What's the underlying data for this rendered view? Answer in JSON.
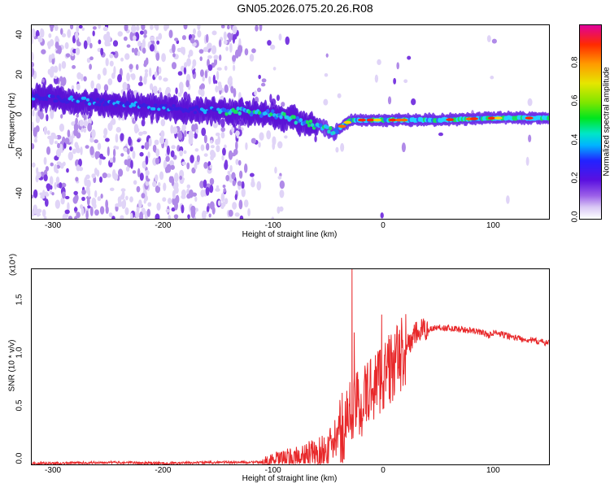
{
  "title": "GN05.2026.075.20.26.R08",
  "chart_data": [
    {
      "type": "heatmap",
      "xlabel": "Height of straight line (km)",
      "ylabel": "Frequency (Hz)",
      "xlim": [
        -320,
        150
      ],
      "ylim": [
        -50,
        48
      ],
      "x_ticks": [
        -300,
        -200,
        -100,
        0,
        100
      ],
      "y_ticks": [
        -40,
        -20,
        0,
        20,
        40
      ],
      "colorbar": {
        "label": "Normalized spectral amplitude",
        "range": [
          0,
          1
        ],
        "ticks": [
          "0.0",
          "0.2",
          "0.4",
          "0.6",
          "0.8"
        ]
      },
      "ridge": {
        "height_km": [
          -320,
          -280,
          -240,
          -200,
          -160,
          -120,
          -100,
          -80,
          -60,
          -45,
          -30,
          0,
          50,
          100,
          150
        ],
        "frequency_hz": [
          12,
          10,
          8,
          6,
          5,
          4,
          3,
          0,
          -3,
          -6,
          0,
          0,
          0,
          1,
          1
        ]
      }
    },
    {
      "type": "line",
      "xlabel": "Height of straight line (km)",
      "ylabel": "SNR (10 * v/v)",
      "y_multiplier": "(x10⁴)",
      "xlim": [
        -320,
        150
      ],
      "ylim": [
        0,
        1.85
      ],
      "x_ticks": [
        -300,
        -200,
        -100,
        0,
        100
      ],
      "y_ticks": [
        "0.0",
        "0.5",
        "1.0",
        "1.5"
      ],
      "series_color": "#e8282a",
      "series": [
        {
          "x": [
            -320,
            -300,
            -250,
            -200,
            -150,
            -110,
            -100,
            -80,
            -60,
            -50,
            -40,
            -30,
            -25,
            -20,
            -15,
            -10,
            -5,
            0,
            10,
            20,
            30,
            40,
            50,
            70,
            90,
            95,
            100,
            120,
            150
          ],
          "y": [
            0.01,
            0.01,
            0.02,
            0.01,
            0.02,
            0.02,
            0.04,
            0.06,
            0.1,
            0.15,
            0.3,
            0.5,
            0.55,
            0.6,
            0.65,
            0.75,
            0.8,
            0.85,
            0.95,
            1.1,
            1.25,
            1.28,
            1.3,
            1.28,
            1.25,
            1.22,
            1.25,
            1.2,
            1.15
          ]
        }
      ],
      "spikes": [
        {
          "x": -29,
          "y": 1.85
        },
        {
          "x": -27,
          "y": 1.25
        },
        {
          "x": -2,
          "y": 1.42
        }
      ]
    }
  ]
}
